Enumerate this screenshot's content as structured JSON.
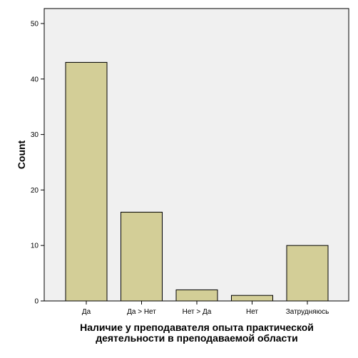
{
  "chart_data": {
    "type": "bar",
    "categories": [
      "Да",
      "Да > Нет",
      "Нет > Да",
      "Нет",
      "Затрудняюсь"
    ],
    "values": [
      43,
      16,
      2,
      1,
      10
    ],
    "xlabel_lines": [
      "Наличие у преподавателя опыта практической",
      "деятельности в преподаваемой области"
    ],
    "ylabel": "Count",
    "ylim": [
      0,
      50
    ],
    "yticks": [
      0,
      10,
      20,
      30,
      40,
      50
    ],
    "grid": false,
    "legend": "none",
    "colors": {
      "plot_background": "#f0f0f0",
      "bar_fill": "#d3ce97",
      "bar_stroke": "#000000"
    }
  }
}
